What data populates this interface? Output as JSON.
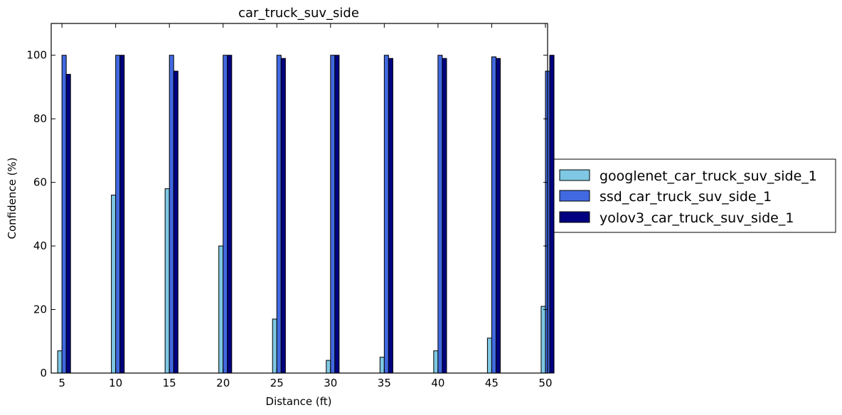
{
  "chart_data": {
    "type": "bar",
    "title": "car_truck_suv_side",
    "xlabel": "Distance (ft)",
    "ylabel": "Confidence (%)",
    "categories": [
      "5",
      "10",
      "15",
      "20",
      "25",
      "30",
      "35",
      "40",
      "45",
      "50"
    ],
    "ylim": [
      0,
      110
    ],
    "yticks": [
      0,
      20,
      40,
      60,
      80,
      100
    ],
    "grid": false,
    "legend_position": "right, outside plot",
    "series": [
      {
        "name": "googlenet_car_truck_suv_side_1",
        "color": "#7ec8e3",
        "values": [
          7,
          56,
          58,
          40,
          17,
          4,
          5,
          7,
          11,
          21
        ]
      },
      {
        "name": "ssd_car_truck_suv_side_1",
        "color": "#4169e1",
        "values": [
          100,
          100,
          100,
          100,
          100,
          100,
          100,
          100,
          99.5,
          95
        ]
      },
      {
        "name": "yolov3_car_truck_suv_side_1",
        "color": "#000080",
        "values": [
          94,
          100,
          95,
          100,
          99,
          100,
          99,
          99,
          99,
          100
        ]
      }
    ]
  }
}
